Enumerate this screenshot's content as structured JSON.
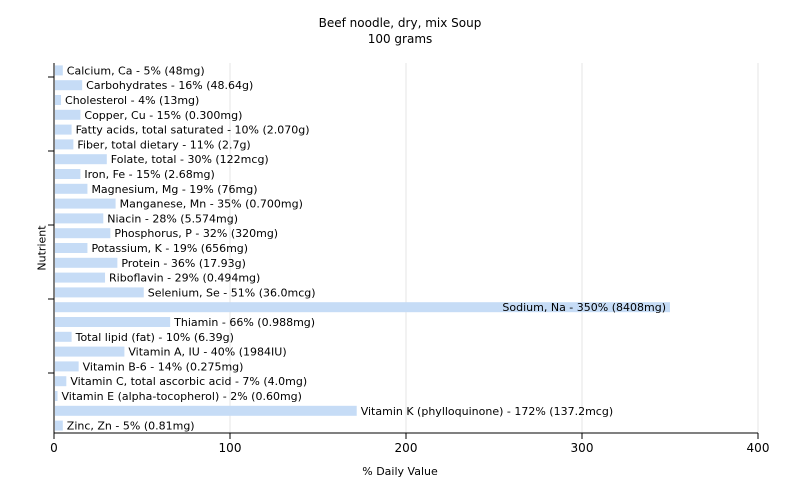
{
  "chart_data": {
    "type": "bar",
    "orientation": "horizontal",
    "title": "Beef noodle, dry, mix Soup",
    "subtitle": "100 grams",
    "xlabel": "% Daily Value",
    "ylabel": "Nutrient",
    "xlim": [
      0,
      400
    ],
    "xticks": [
      "0",
      "100",
      "200",
      "300",
      "400"
    ],
    "grid": true,
    "bar_color": "#c6dcf6",
    "categories": [
      "Calcium, Ca",
      "Carbohydrates",
      "Cholesterol",
      "Copper, Cu",
      "Fatty acids, total saturated",
      "Fiber, total dietary",
      "Folate, total",
      "Iron, Fe",
      "Magnesium, Mg",
      "Manganese, Mn",
      "Niacin",
      "Phosphorus, P",
      "Potassium, K",
      "Protein",
      "Riboflavin",
      "Selenium, Se",
      "Sodium, Na",
      "Thiamin",
      "Total lipid (fat)",
      "Vitamin A, IU",
      "Vitamin B-6",
      "Vitamin C, total ascorbic acid",
      "Vitamin E (alpha-tocopherol)",
      "Vitamin K (phylloquinone)",
      "Zinc, Zn"
    ],
    "values": [
      5,
      16,
      4,
      15,
      10,
      11,
      30,
      15,
      19,
      35,
      28,
      32,
      19,
      36,
      29,
      51,
      350,
      66,
      10,
      40,
      14,
      7,
      2,
      172,
      5
    ],
    "labels": [
      "Calcium, Ca - 5% (48mg)",
      "Carbohydrates - 16% (48.64g)",
      "Cholesterol - 4% (13mg)",
      "Copper, Cu - 15% (0.300mg)",
      "Fatty acids, total saturated - 10% (2.070g)",
      "Fiber, total dietary - 11% (2.7g)",
      "Folate, total - 30% (122mcg)",
      "Iron, Fe - 15% (2.68mg)",
      "Magnesium, Mg - 19% (76mg)",
      "Manganese, Mn - 35% (0.700mg)",
      "Niacin - 28% (5.574mg)",
      "Phosphorus, P - 32% (320mg)",
      "Potassium, K - 19% (656mg)",
      "Protein - 36% (17.93g)",
      "Riboflavin - 29% (0.494mg)",
      "Selenium, Se - 51% (36.0mcg)",
      "Sodium, Na - 350% (8408mg)",
      "Thiamin - 66% (0.988mg)",
      "Total lipid (fat) - 10% (6.39g)",
      "Vitamin A, IU - 40% (1984IU)",
      "Vitamin B-6 - 14% (0.275mg)",
      "Vitamin C, total ascorbic acid - 7% (4.0mg)",
      "Vitamin E (alpha-tocopherol) - 2% (0.60mg)",
      "Vitamin K (phylloquinone) - 172% (137.2mcg)",
      "Zinc, Zn - 5% (0.81mg)"
    ]
  }
}
